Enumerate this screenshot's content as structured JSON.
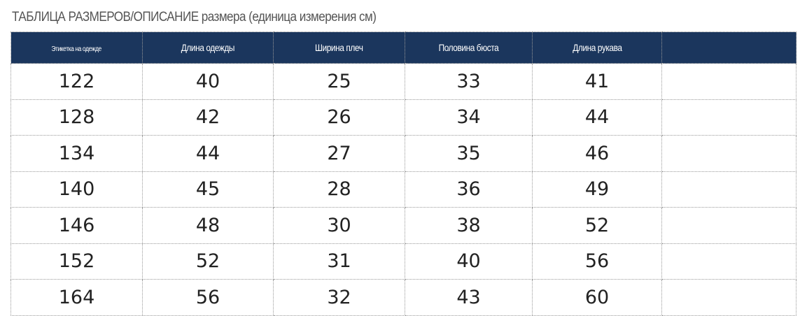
{
  "title": "ТАБЛИЦА РАЗМЕРОВ/ОПИСАНИЕ размера (единица измерения см)",
  "header_color": "#1b365d",
  "columns": [
    "Этикетка на одежде",
    "Длина одежды",
    "Ширина плеч",
    "Половина бюста",
    "Длина рукава",
    ""
  ],
  "rows": [
    [
      "122",
      "40",
      "25",
      "33",
      "41",
      ""
    ],
    [
      "128",
      "42",
      "26",
      "34",
      "44",
      ""
    ],
    [
      "134",
      "44",
      "27",
      "35",
      "46",
      ""
    ],
    [
      "140",
      "45",
      "28",
      "36",
      "49",
      ""
    ],
    [
      "146",
      "48",
      "30",
      "38",
      "52",
      ""
    ],
    [
      "152",
      "52",
      "31",
      "40",
      "56",
      ""
    ],
    [
      "164",
      "56",
      "32",
      "43",
      "60",
      ""
    ]
  ]
}
